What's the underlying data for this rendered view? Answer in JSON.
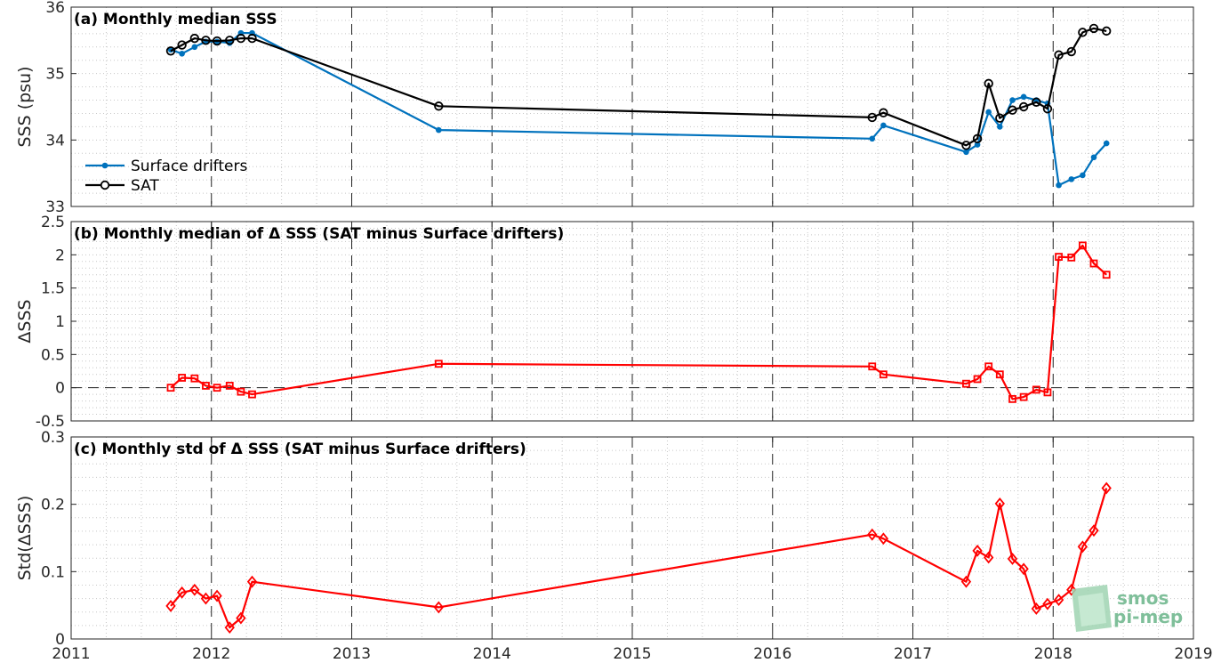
{
  "chart_data": [
    {
      "type": "line",
      "title": "(a) Monthly median SSS",
      "ylabel": "SSS (psu)",
      "xlim": [
        2011,
        2019
      ],
      "ylim": [
        33,
        36
      ],
      "yticks": [
        33,
        34,
        35,
        36
      ],
      "grid": true,
      "legend_placement": "lower-left",
      "series": [
        {
          "name": "Surface drifters",
          "color": "#0072bd",
          "marker": "dot",
          "x": [
            2011.71,
            2011.79,
            2011.88,
            2011.96,
            2012.04,
            2012.13,
            2012.21,
            2012.29,
            2013.62,
            2016.71,
            2016.79,
            2017.38,
            2017.46,
            2017.54,
            2017.62,
            2017.71,
            2017.79,
            2017.88,
            2017.96,
            2018.04,
            2018.13,
            2018.21,
            2018.29,
            2018.38
          ],
          "values": [
            35.36,
            35.3,
            35.4,
            35.48,
            35.48,
            35.46,
            35.61,
            35.61,
            34.15,
            34.02,
            34.22,
            33.82,
            33.93,
            34.42,
            34.2,
            34.6,
            34.65,
            34.6,
            34.55,
            33.32,
            33.41,
            33.47,
            33.74,
            33.95
          ]
        },
        {
          "name": "SAT",
          "color": "#000000",
          "marker": "circle",
          "x": [
            2011.71,
            2011.79,
            2011.88,
            2011.96,
            2012.04,
            2012.13,
            2012.21,
            2012.29,
            2013.62,
            2016.71,
            2016.79,
            2017.38,
            2017.46,
            2017.54,
            2017.62,
            2017.71,
            2017.79,
            2017.88,
            2017.96,
            2018.04,
            2018.13,
            2018.21,
            2018.29,
            2018.38
          ],
          "values": [
            35.34,
            35.43,
            35.53,
            35.5,
            35.49,
            35.5,
            35.53,
            35.53,
            34.51,
            34.34,
            34.41,
            33.92,
            34.02,
            34.85,
            34.33,
            34.45,
            34.5,
            34.57,
            34.47,
            35.28,
            35.33,
            35.62,
            35.68,
            35.64
          ]
        }
      ]
    },
    {
      "type": "line",
      "title": "(b) Monthly median of Δ SSS (SAT minus Surface drifters)",
      "ylabel": "ΔSSS",
      "xlim": [
        2011,
        2019
      ],
      "ylim": [
        -0.5,
        2.5
      ],
      "yticks": [
        -0.5,
        0,
        0.5,
        1,
        1.5,
        2,
        2.5
      ],
      "grid": true,
      "zero_line": true,
      "series": [
        {
          "color": "#ff0000",
          "marker": "square",
          "x": [
            2011.71,
            2011.79,
            2011.88,
            2011.96,
            2012.04,
            2012.13,
            2012.21,
            2012.29,
            2013.62,
            2016.71,
            2016.79,
            2017.38,
            2017.46,
            2017.54,
            2017.62,
            2017.71,
            2017.79,
            2017.88,
            2017.96,
            2018.04,
            2018.13,
            2018.21,
            2018.29,
            2018.38
          ],
          "values": [
            0.0,
            0.15,
            0.14,
            0.03,
            0.0,
            0.03,
            -0.06,
            -0.1,
            0.36,
            0.32,
            0.2,
            0.06,
            0.13,
            0.32,
            0.2,
            -0.17,
            -0.14,
            -0.03,
            -0.07,
            1.97,
            1.96,
            2.14,
            1.87,
            1.7
          ]
        }
      ]
    },
    {
      "type": "line",
      "title": "(c) Monthly std of Δ SSS (SAT minus Surface drifters)",
      "ylabel": "Std(ΔSSS)",
      "xlim": [
        2011,
        2019
      ],
      "ylim": [
        0,
        0.3
      ],
      "yticks": [
        0,
        0.1,
        0.2,
        0.3
      ],
      "xticks": [
        2011,
        2012,
        2013,
        2014,
        2015,
        2016,
        2017,
        2018,
        2019
      ],
      "grid": true,
      "series": [
        {
          "color": "#ff0000",
          "marker": "diamond",
          "x": [
            2011.71,
            2011.79,
            2011.88,
            2011.96,
            2012.04,
            2012.13,
            2012.21,
            2012.29,
            2013.62,
            2016.71,
            2016.79,
            2017.38,
            2017.46,
            2017.54,
            2017.62,
            2017.71,
            2017.79,
            2017.88,
            2017.96,
            2018.04,
            2018.13,
            2018.21,
            2018.29,
            2018.38
          ],
          "values": [
            0.049,
            0.069,
            0.073,
            0.06,
            0.064,
            0.017,
            0.031,
            0.085,
            0.047,
            0.155,
            0.149,
            0.085,
            0.131,
            0.121,
            0.201,
            0.119,
            0.104,
            0.045,
            0.052,
            0.058,
            0.073,
            0.137,
            0.161,
            0.224
          ]
        }
      ]
    }
  ],
  "logo": {
    "line1": "smos",
    "line2": "pi-mep"
  }
}
